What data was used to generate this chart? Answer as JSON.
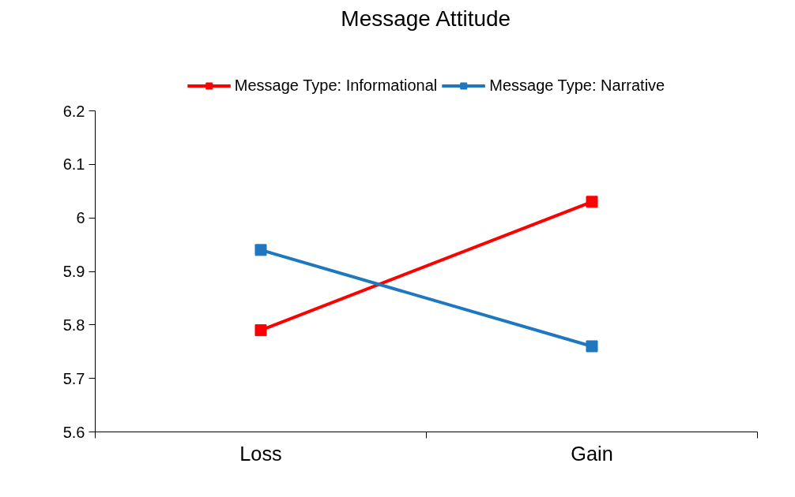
{
  "chart_data": {
    "type": "line",
    "title": "Message Attitude",
    "categories": [
      "Loss",
      "Gain"
    ],
    "series": [
      {
        "name": "Message Type: Informational",
        "color": "#ff0000",
        "values": [
          5.79,
          6.03
        ]
      },
      {
        "name": "Message Type: Narrative",
        "color": "#1f77c0",
        "values": [
          5.94,
          5.76
        ]
      }
    ],
    "ylim": [
      5.6,
      6.2
    ],
    "yticks": [
      5.6,
      5.7,
      5.8,
      5.9,
      6,
      6.1,
      6.2
    ],
    "grid": false,
    "legend": "top",
    "marker": "square",
    "line_style": "solid"
  }
}
